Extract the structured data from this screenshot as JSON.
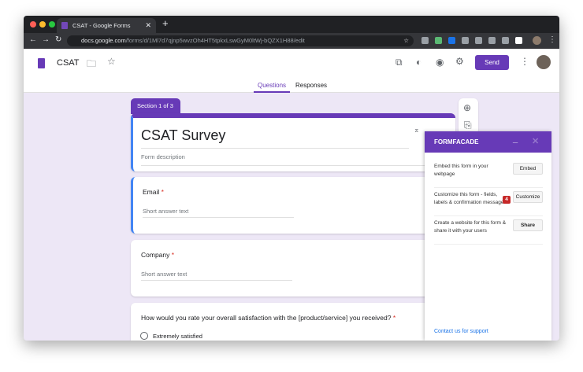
{
  "browser": {
    "tab_title": "CSAT - Google Forms",
    "url_host": "docs.google.com",
    "url_path": "/forms/d/1Ml7d7qjnp5wvzOh4HT5tpkxLswGyM0ltWj-bQZX1H88/edit"
  },
  "header": {
    "doc_title": "CSAT",
    "send_label": "Send"
  },
  "tabs": [
    {
      "label": "Questions",
      "active": true
    },
    {
      "label": "Responses",
      "active": false
    }
  ],
  "form": {
    "section_label": "Section 1 of 3",
    "title": "CSAT Survey",
    "description_placeholder": "Form description",
    "questions": [
      {
        "label": "Email",
        "required": "*",
        "placeholder": "Short answer text"
      },
      {
        "label": "Company",
        "required": "*",
        "placeholder": "Short answer text"
      },
      {
        "label": "How would you rate your overall satisfaction with the [product/service] you received?",
        "required": "*",
        "option": "Extremely satisfied"
      }
    ]
  },
  "formfacade": {
    "title": "FORMFACADE",
    "rows": [
      {
        "text": "Embed this form in your webpage",
        "button": "Embed"
      },
      {
        "text": "Customize this form - fields, labels & confirmation message",
        "button": "Customize",
        "badge": "4"
      },
      {
        "text": "Create a website for this form & share it with your users",
        "button": "Share"
      }
    ],
    "support_link": "Contact us for support"
  },
  "colors": {
    "accent": "#673ab7",
    "background": "#ede7f6",
    "focus": "#4285f4"
  }
}
